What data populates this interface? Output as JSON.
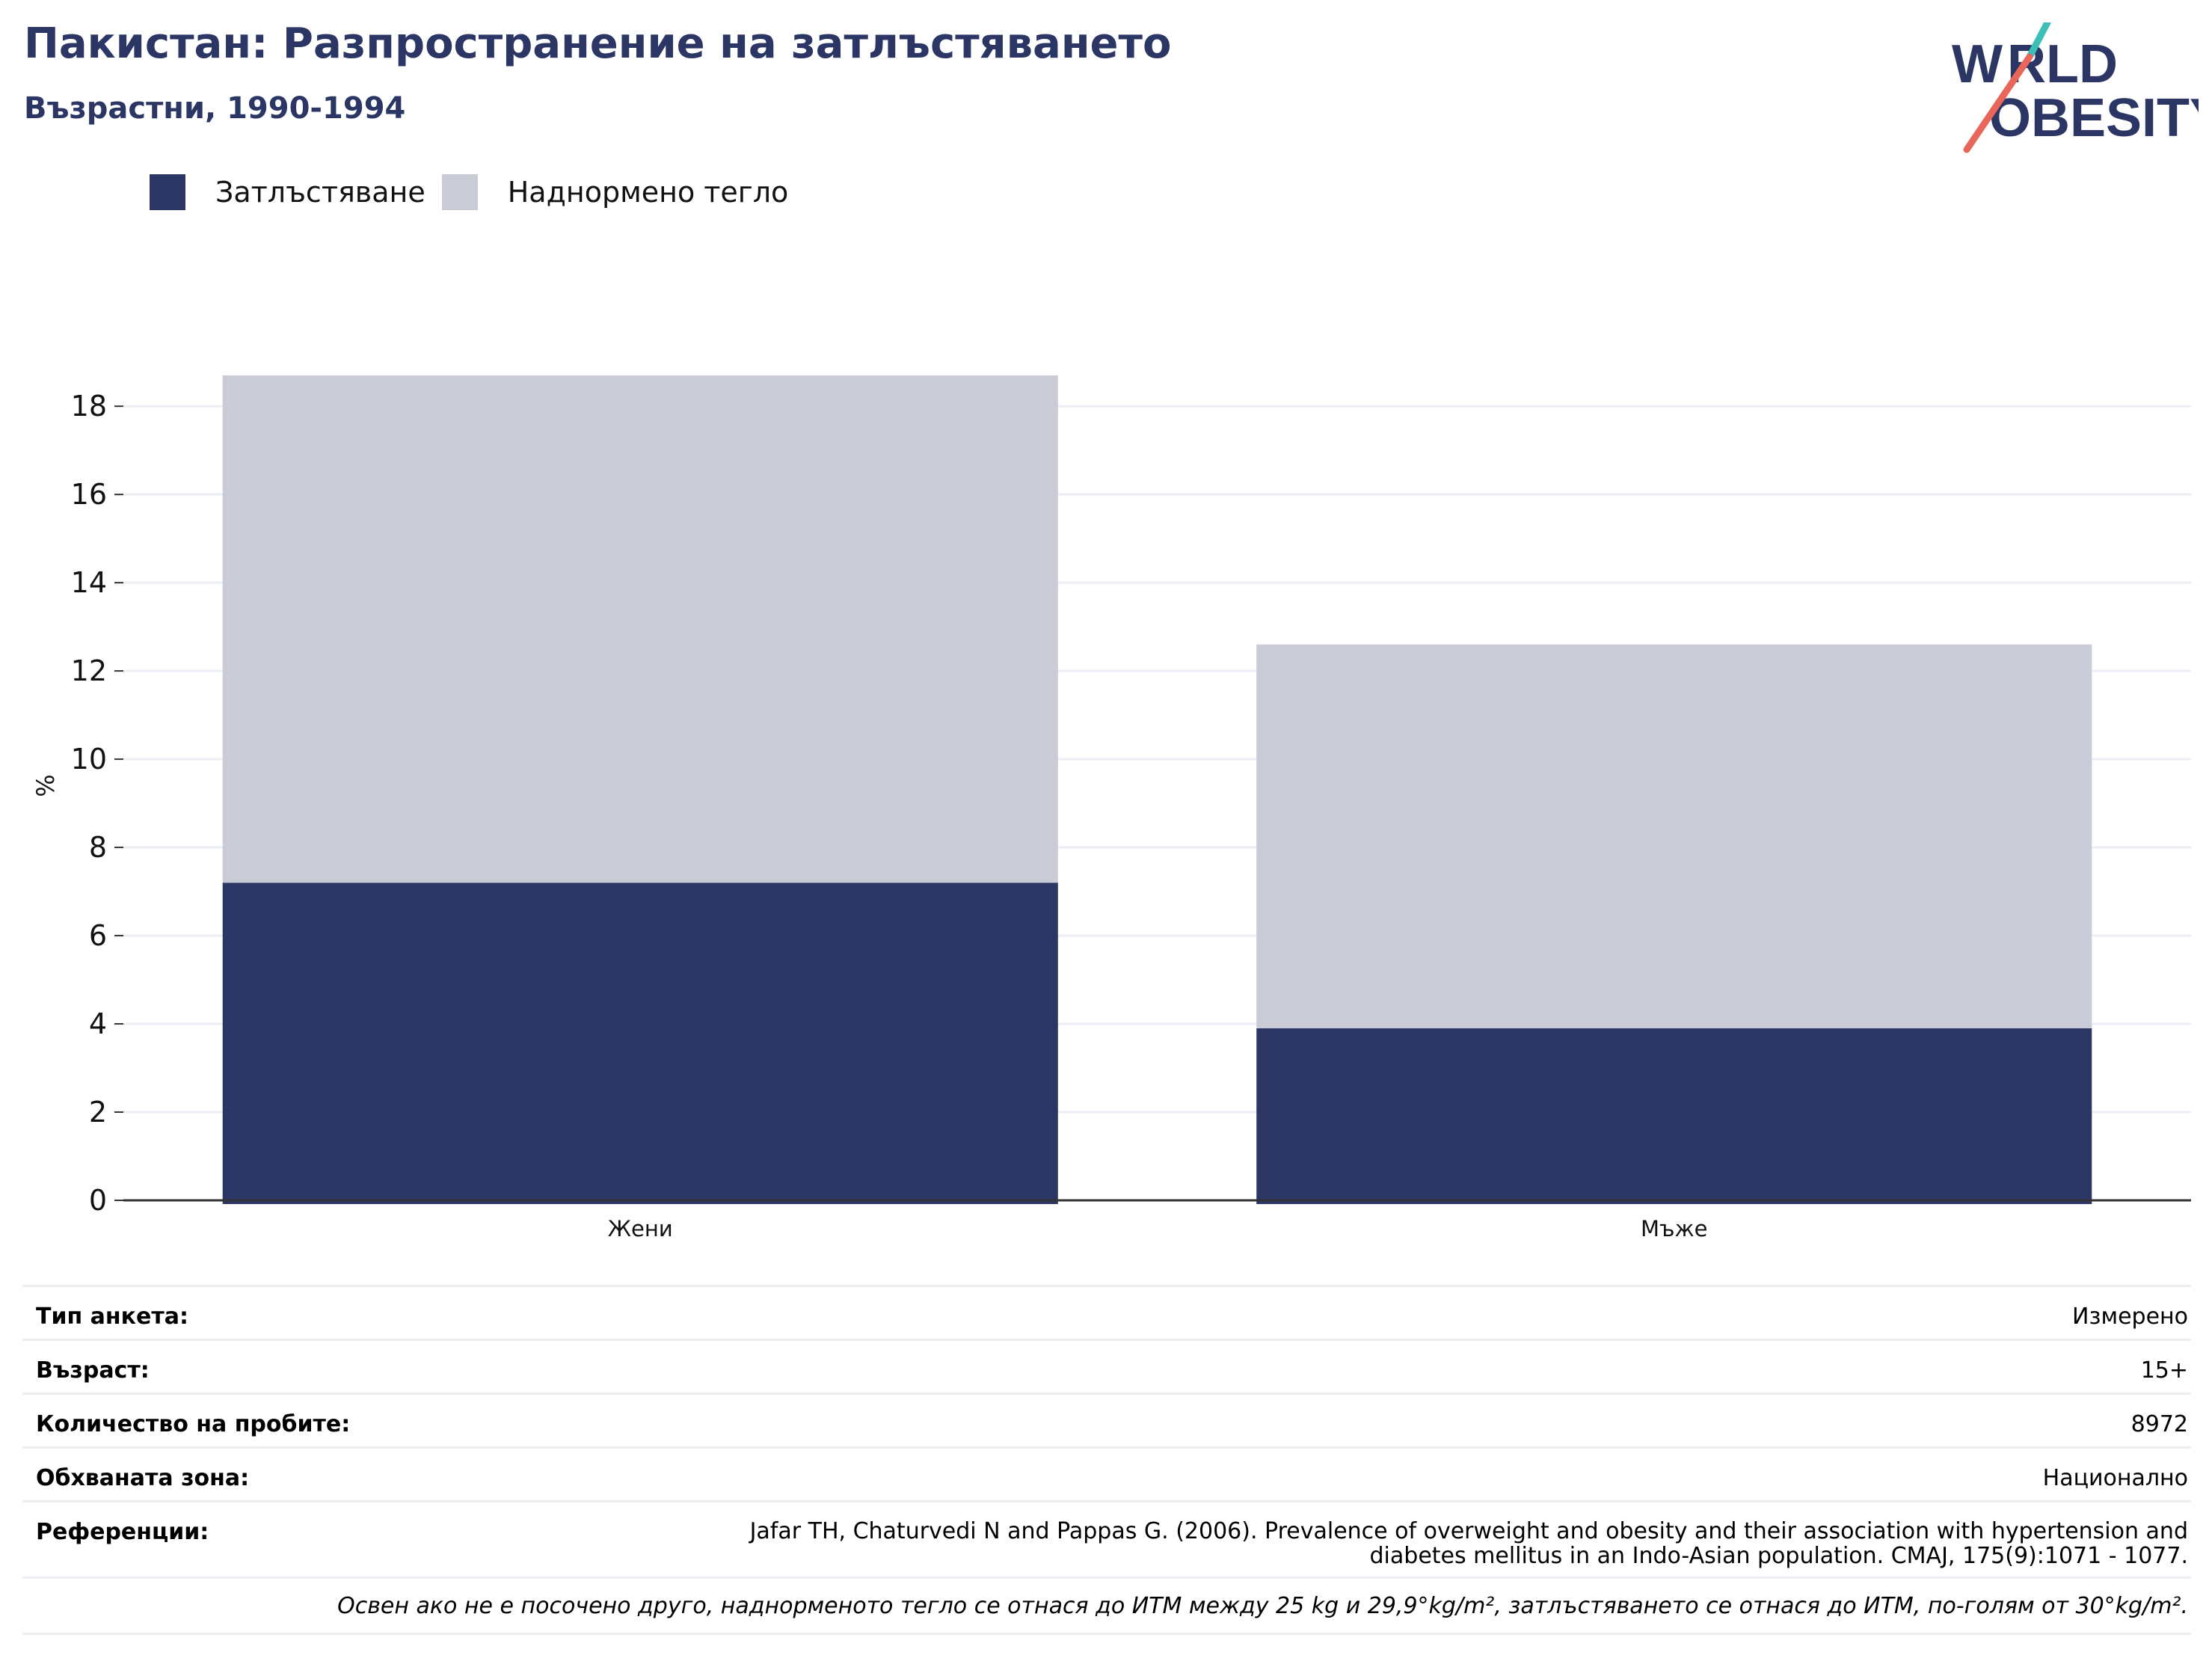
{
  "header": {
    "title": "Пакистан: Разпространение на затлъстяването",
    "subtitle": "Възрастни, 1990-1994",
    "logo_text": "WORLD OBESITY"
  },
  "colors": {
    "title": "#2b3664",
    "obesity": "#2b3664",
    "overweight": "#c9cbd7",
    "grid": "#eceef4",
    "logo_teal": "#3bbfb6",
    "logo_coral": "#e8675a"
  },
  "legend": [
    {
      "label": "Затлъстяване",
      "color": "#2b3664"
    },
    {
      "label": "Наднормено тегло",
      "color": "#c9cbd7"
    }
  ],
  "chart_data": {
    "type": "bar",
    "stacked": true,
    "categories": [
      "Жени",
      "Мъже"
    ],
    "series": [
      {
        "name": "Затлъстяване",
        "values": [
          7.2,
          3.9
        ]
      },
      {
        "name": "Наднормено тегло",
        "values": [
          11.5,
          8.7
        ]
      }
    ],
    "ylabel": "%",
    "ylim": [
      0,
      18.8
    ],
    "yticks": [
      0,
      2,
      4,
      6,
      8,
      10,
      12,
      14,
      16,
      18
    ],
    "grid": true,
    "legend_position": "top-left"
  },
  "info": {
    "rows": [
      {
        "key": "Тип анкета:",
        "value": "Измерено"
      },
      {
        "key": "Възраст:",
        "value": "15+"
      },
      {
        "key": "Количество на пробите:",
        "value": "8972"
      },
      {
        "key": "Обхваната зона:",
        "value": "Национално"
      }
    ],
    "reference": {
      "key": "Референции:",
      "value": "Jafar TH, Chaturvedi N and Pappas G. (2006). Prevalence of overweight and obesity and their association with hypertension and diabetes mellitus in an Indo-Asian population. CMAJ, 175(9):1071 - 1077."
    },
    "note": "Освен ако не е посочено друго, наднорменото тегло се отнася до ИТМ между 25 kg и 29,9°kg/m², затлъстяването се отнася до ИТМ, по-голям от 30°kg/m²."
  }
}
